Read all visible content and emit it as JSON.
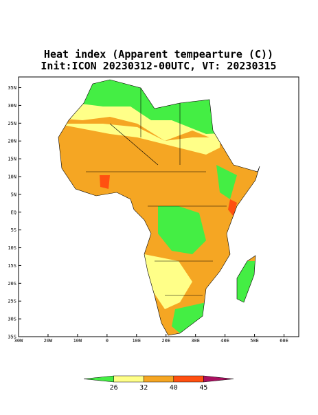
{
  "map": {
    "title": "Heat index (Apparent tempearture (C))",
    "subtitle": "Init:ICON 20230312-00UTC, VT: 20230315",
    "xlim": [
      -30,
      65
    ],
    "ylim": [
      -35,
      38
    ],
    "xticks": [
      {
        "value": -30,
        "label": "30W"
      },
      {
        "value": -20,
        "label": "20W"
      },
      {
        "value": -10,
        "label": "10W"
      },
      0,
      {
        "value": 10,
        "label": "10E"
      },
      {
        "value": 20,
        "label": "20E"
      },
      {
        "value": 30,
        "label": "30E"
      },
      {
        "value": 40,
        "label": "40E"
      },
      {
        "value": 50,
        "label": "50E"
      },
      {
        "value": 60,
        "label": "60E"
      }
    ],
    "yticks": [
      {
        "value": 35,
        "label": "35N"
      },
      {
        "value": 30,
        "label": "30N"
      },
      {
        "value": 25,
        "label": "25N"
      },
      {
        "value": 20,
        "label": "20N"
      },
      {
        "value": 15,
        "label": "15N"
      },
      {
        "value": 10,
        "label": "10N"
      },
      {
        "value": 5,
        "label": "5N"
      },
      {
        "value": 0,
        "label": "EQ"
      },
      {
        "value": -5,
        "label": "5S"
      },
      {
        "value": -10,
        "label": "10S"
      },
      {
        "value": -15,
        "label": "15S"
      },
      {
        "value": -20,
        "label": "20S"
      },
      {
        "value": -25,
        "label": "25S"
      },
      {
        "value": -30,
        "label": "30S"
      },
      {
        "value": -35,
        "label": "35S"
      }
    ],
    "colorbar": {
      "levels": [
        26,
        32,
        40,
        45
      ],
      "colors": [
        "#44ee44",
        "#ffff88",
        "#f5a623",
        "#ff5010",
        "#aa1060"
      ]
    }
  }
}
